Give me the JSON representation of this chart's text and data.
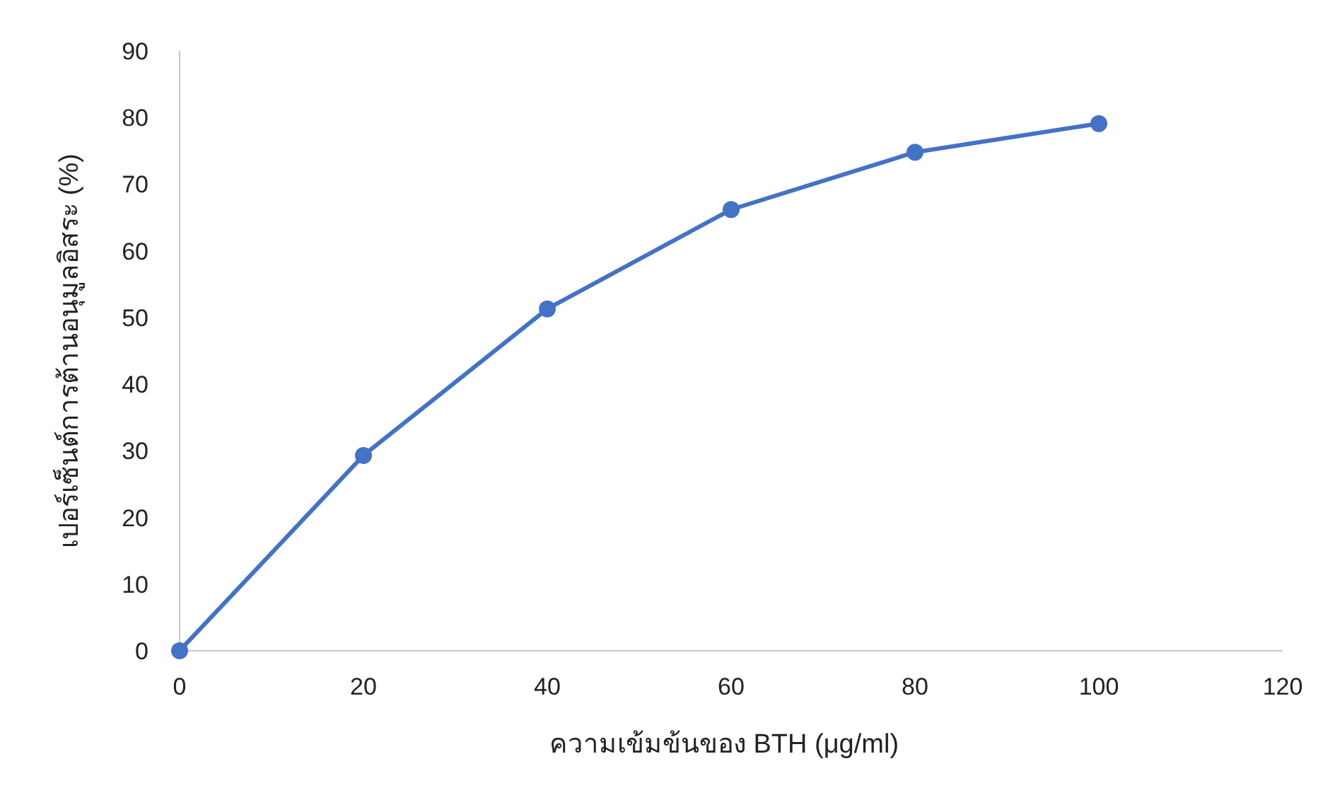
{
  "chart_data": {
    "type": "line",
    "xlabel": "ความเข้มข้นของ  BTH (μg/ml)",
    "ylabel": "เปอร์เซ็นต์การต้านอนุมูลอิสระ  (%)",
    "x": [
      0,
      20,
      40,
      60,
      80,
      100
    ],
    "series": [
      {
        "color": "#4472c4",
        "values": [
          0,
          29.3,
          51.3,
          66.2,
          74.8,
          79.1
        ]
      }
    ],
    "xlim": [
      0,
      120
    ],
    "xticks": [
      0,
      20,
      40,
      60,
      80,
      100,
      120
    ],
    "ylim": [
      0,
      90
    ],
    "yticks": [
      0,
      10,
      20,
      30,
      40,
      50,
      60,
      70,
      80,
      90
    ],
    "marker": "circle",
    "line_style": "solid",
    "grid": false
  }
}
